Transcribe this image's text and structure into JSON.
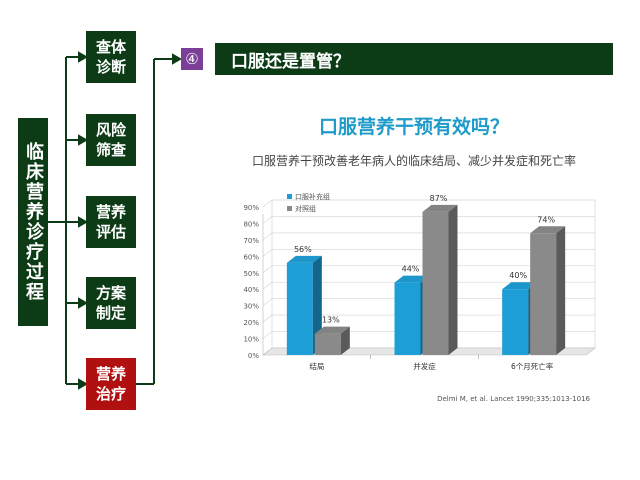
{
  "process": {
    "main_label": "临床营养诊疗过程",
    "steps": [
      {
        "line1": "查体",
        "line2": "诊断"
      },
      {
        "line1": "风险",
        "line2": "筛查"
      },
      {
        "line1": "营养",
        "line2": "评估"
      },
      {
        "line1": "方案",
        "line2": "制定"
      },
      {
        "line1": "营养",
        "line2": "治疗"
      }
    ]
  },
  "question": {
    "number": "④",
    "text": "口服还是置管？"
  },
  "slide_title": "口服营养干预有效吗？",
  "colors": {
    "dark_green": "#0c3b16",
    "red": "#b01010",
    "purple": "#7b3f98",
    "title_blue": "#1f9bc9"
  },
  "chart_data": {
    "type": "bar",
    "subtitle": "口服营养干预改善老年病人的临床结局、减少并发症和死亡率",
    "categories": [
      "结局",
      "并发症",
      "6个月死亡率"
    ],
    "series": [
      {
        "name": "口服补充组",
        "values": [
          56,
          44,
          40
        ],
        "labels": [
          "56%",
          "44%",
          "40%"
        ],
        "color": "#1e9ed6"
      },
      {
        "name": "对照组",
        "values": [
          13,
          87,
          74
        ],
        "labels": [
          "13%",
          "87%",
          "74%"
        ],
        "color": "#8a8a8a"
      }
    ],
    "ylim": [
      0,
      90
    ],
    "yticks": [
      "0%",
      "10%",
      "20%",
      "30%",
      "40%",
      "50%",
      "60%",
      "70%",
      "80%",
      "90%"
    ],
    "grid": true,
    "legend": "top-left"
  },
  "citation": "Delmi M, et al. Lancet 1990;335:1013-1016"
}
